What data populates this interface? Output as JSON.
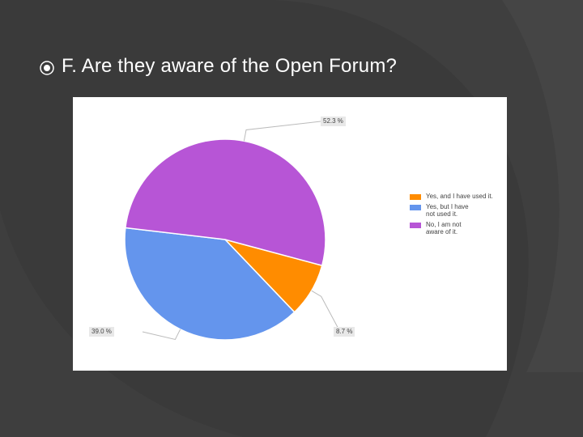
{
  "slide": {
    "bullet_icon": "circle-bullet-icon",
    "title": "F.  Are they aware of the Open Forum?"
  },
  "chart_data": {
    "type": "pie",
    "categories": [
      "Yes, and I have used it.",
      "Yes, but I have not used it.",
      "No, I am not aware of it."
    ],
    "values": [
      8.7,
      39.0,
      52.3
    ],
    "value_labels": [
      "8.7 %",
      "39.0 %",
      "52.3 %"
    ],
    "legend_lines": [
      [
        "Yes, and I have used it."
      ],
      [
        "Yes, but I have",
        "not used it."
      ],
      [
        "No, I am not",
        "aware of it."
      ]
    ],
    "colors": [
      "#ff8c00",
      "#6495ed",
      "#b755d6"
    ],
    "legend_position": "right"
  }
}
